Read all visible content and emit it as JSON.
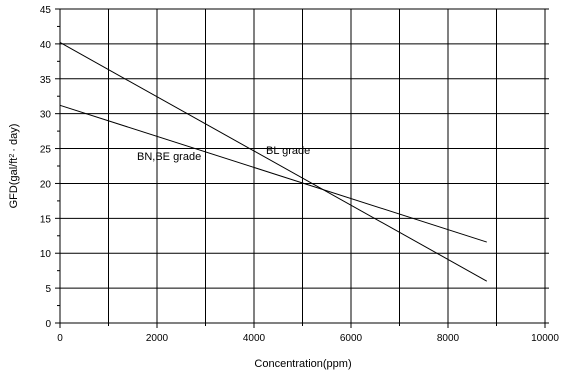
{
  "chart_data": {
    "type": "line",
    "title": "",
    "xlabel": "Concentration(ppm)",
    "ylabel_main": "GFD(gal/ft",
    "ylabel_sup": "2",
    "ylabel_tail": "· day)",
    "xlim": [
      0,
      10000
    ],
    "ylim": [
      0,
      45
    ],
    "xticks": [
      0,
      2000,
      4000,
      6000,
      8000,
      10000
    ],
    "yticks": [
      0,
      5,
      10,
      15,
      20,
      25,
      30,
      35,
      40,
      45
    ],
    "grid": true,
    "series": [
      {
        "name": "BL grade",
        "x": [
          0,
          8800
        ],
        "y": [
          40.2,
          6.0
        ]
      },
      {
        "name": "BN,BE grade",
        "x": [
          0,
          8800
        ],
        "y": [
          31.2,
          11.6
        ]
      }
    ],
    "line_color": "#000000"
  }
}
